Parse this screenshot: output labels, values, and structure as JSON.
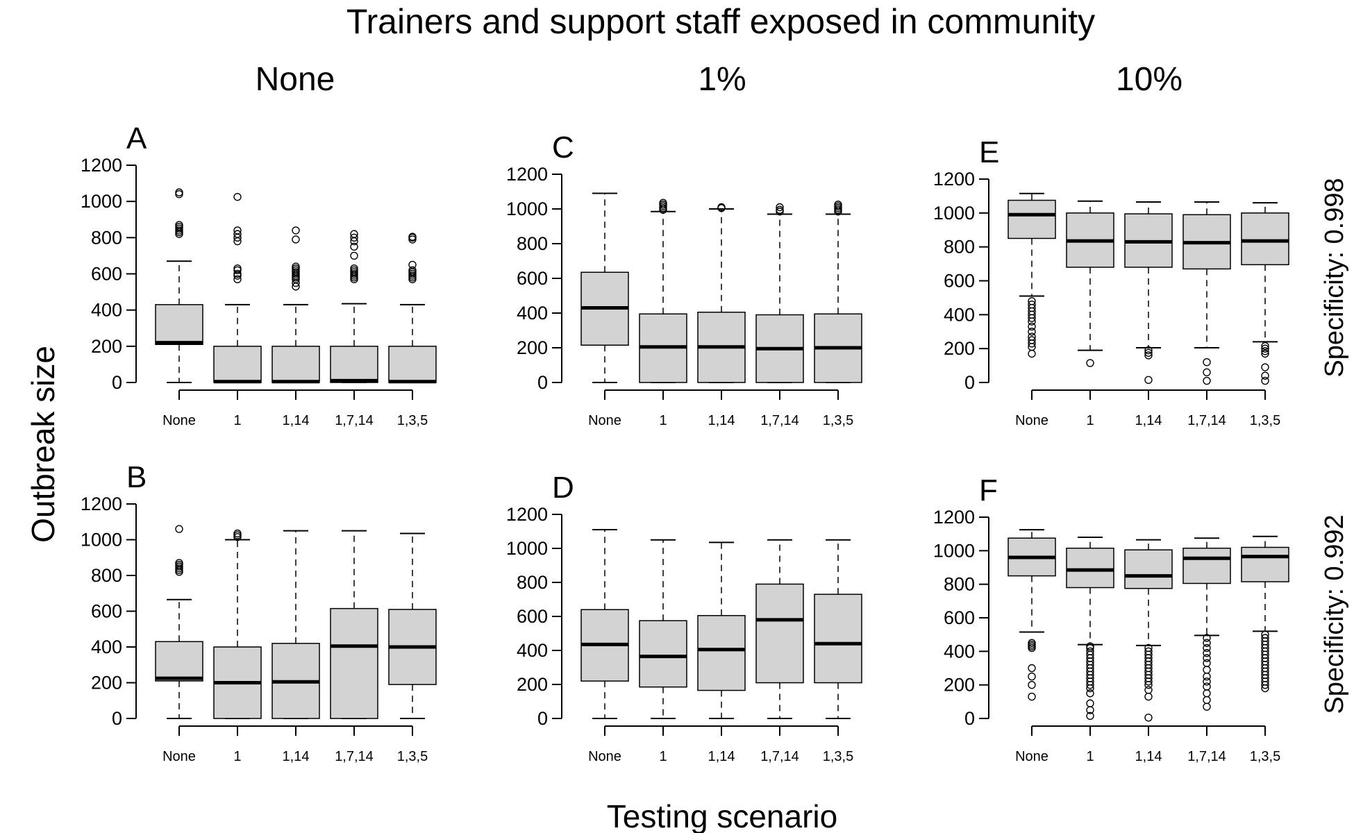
{
  "figure": {
    "title": "Trainers and support staff exposed in community",
    "column_headers": [
      "None",
      "1%",
      "10%"
    ],
    "row_labels": [
      "Specificity: 0.998",
      "Specificity: 0.992"
    ],
    "ylabel": "Outbreak size",
    "xlabel": "Testing scenario",
    "box_fill": "#d3d3d3",
    "line_color": "#000000"
  },
  "chart_data": [
    {
      "panel": "A",
      "type": "box",
      "categories": [
        "None",
        "1",
        "1,14",
        "1,7,14",
        "1,3,5"
      ],
      "yticks": [
        0,
        200,
        400,
        600,
        800,
        1000,
        1200
      ],
      "ylim": [
        0,
        1200
      ],
      "boxes": [
        {
          "whislo": 0,
          "q1": 210,
          "med": 220,
          "q3": 430,
          "whishi": 670,
          "outliers": [
            820,
            830,
            840,
            850,
            860,
            870,
            1040,
            1050
          ]
        },
        {
          "whislo": 0,
          "q1": 0,
          "med": 5,
          "q3": 200,
          "whishi": 430,
          "outliers": [
            570,
            590,
            600,
            620,
            630,
            780,
            800,
            820,
            840,
            1025
          ]
        },
        {
          "whislo": 0,
          "q1": 0,
          "med": 5,
          "q3": 200,
          "whishi": 430,
          "outliers": [
            530,
            550,
            570,
            580,
            590,
            600,
            610,
            620,
            630,
            640,
            790,
            840
          ]
        },
        {
          "whislo": 0,
          "q1": 0,
          "med": 10,
          "q3": 200,
          "whishi": 435,
          "outliers": [
            570,
            580,
            590,
            600,
            610,
            620,
            630,
            700,
            750,
            780,
            800,
            820
          ]
        },
        {
          "whislo": 0,
          "q1": 0,
          "med": 5,
          "q3": 200,
          "whishi": 430,
          "outliers": [
            570,
            580,
            590,
            600,
            610,
            620,
            650,
            790,
            800,
            805
          ]
        }
      ]
    },
    {
      "panel": "B",
      "type": "box",
      "categories": [
        "None",
        "1",
        "1,14",
        "1,7,14",
        "1,3,5"
      ],
      "yticks": [
        0,
        200,
        400,
        600,
        800,
        1000,
        1200
      ],
      "ylim": [
        0,
        1200
      ],
      "boxes": [
        {
          "whislo": 0,
          "q1": 210,
          "med": 225,
          "q3": 430,
          "whishi": 665,
          "outliers": [
            820,
            830,
            840,
            850,
            860,
            870,
            1060
          ]
        },
        {
          "whislo": 0,
          "q1": 0,
          "med": 200,
          "q3": 400,
          "whishi": 1000,
          "outliers": [
            1015,
            1025,
            1035
          ]
        },
        {
          "whislo": 0,
          "q1": 0,
          "med": 205,
          "q3": 420,
          "whishi": 1050,
          "outliers": []
        },
        {
          "whislo": 0,
          "q1": 0,
          "med": 405,
          "q3": 615,
          "whishi": 1050,
          "outliers": []
        },
        {
          "whislo": 0,
          "q1": 190,
          "med": 400,
          "q3": 610,
          "whishi": 1035,
          "outliers": []
        }
      ]
    },
    {
      "panel": "C",
      "type": "box",
      "categories": [
        "None",
        "1",
        "1,14",
        "1,7,14",
        "1,3,5"
      ],
      "yticks": [
        0,
        200,
        400,
        600,
        800,
        1000,
        1200
      ],
      "ylim": [
        0,
        1200
      ],
      "boxes": [
        {
          "whislo": 0,
          "q1": 215,
          "med": 430,
          "q3": 635,
          "whishi": 1090,
          "outliers": []
        },
        {
          "whislo": 0,
          "q1": 0,
          "med": 205,
          "q3": 395,
          "whishi": 985,
          "outliers": [
            995,
            1005,
            1015,
            1025,
            1035
          ]
        },
        {
          "whislo": 0,
          "q1": 0,
          "med": 205,
          "q3": 405,
          "whishi": 1000,
          "outliers": [
            1005,
            1010
          ]
        },
        {
          "whislo": 0,
          "q1": 0,
          "med": 195,
          "q3": 390,
          "whishi": 970,
          "outliers": [
            985,
            995,
            1010
          ]
        },
        {
          "whislo": 0,
          "q1": 0,
          "med": 200,
          "q3": 395,
          "whishi": 970,
          "outliers": [
            985,
            995,
            1005,
            1015,
            1025
          ]
        }
      ]
    },
    {
      "panel": "D",
      "type": "box",
      "categories": [
        "None",
        "1",
        "1,14",
        "1,7,14",
        "1,3,5"
      ],
      "yticks": [
        0,
        200,
        400,
        600,
        800,
        1000,
        1200
      ],
      "ylim": [
        0,
        1200
      ],
      "boxes": [
        {
          "whislo": 0,
          "q1": 220,
          "med": 435,
          "q3": 640,
          "whishi": 1110,
          "outliers": []
        },
        {
          "whislo": 0,
          "q1": 185,
          "med": 365,
          "q3": 575,
          "whishi": 1050,
          "outliers": []
        },
        {
          "whislo": 0,
          "q1": 165,
          "med": 405,
          "q3": 605,
          "whishi": 1035,
          "outliers": []
        },
        {
          "whislo": 0,
          "q1": 210,
          "med": 580,
          "q3": 790,
          "whishi": 1050,
          "outliers": []
        },
        {
          "whislo": 0,
          "q1": 210,
          "med": 440,
          "q3": 730,
          "whishi": 1050,
          "outliers": []
        }
      ]
    },
    {
      "panel": "E",
      "type": "box",
      "categories": [
        "None",
        "1",
        "1,14",
        "1,7,14",
        "1,3,5"
      ],
      "yticks": [
        0,
        200,
        400,
        600,
        800,
        1000,
        1200
      ],
      "ylim": [
        0,
        1200
      ],
      "boxes": [
        {
          "whislo": 510,
          "q1": 850,
          "med": 990,
          "q3": 1075,
          "whishi": 1115,
          "outliers": [
            170,
            210,
            230,
            250,
            270,
            300,
            330,
            360,
            380,
            400,
            420,
            440,
            460,
            480
          ]
        },
        {
          "whislo": 190,
          "q1": 680,
          "med": 835,
          "q3": 1000,
          "whishi": 1070,
          "outliers": [
            115
          ]
        },
        {
          "whislo": 205,
          "q1": 680,
          "med": 830,
          "q3": 995,
          "whishi": 1065,
          "outliers": [
            15,
            160,
            175,
            190
          ]
        },
        {
          "whislo": 205,
          "q1": 670,
          "med": 825,
          "q3": 990,
          "whishi": 1065,
          "outliers": [
            10,
            60,
            120
          ]
        },
        {
          "whislo": 240,
          "q1": 695,
          "med": 835,
          "q3": 1000,
          "whishi": 1060,
          "outliers": [
            10,
            40,
            90,
            170,
            185,
            200,
            215
          ]
        }
      ]
    },
    {
      "panel": "F",
      "type": "box",
      "categories": [
        "None",
        "1",
        "1,14",
        "1,7,14",
        "1,3,5"
      ],
      "yticks": [
        0,
        200,
        400,
        600,
        800,
        1000,
        1200
      ],
      "ylim": [
        0,
        1200
      ],
      "boxes": [
        {
          "whislo": 515,
          "q1": 850,
          "med": 960,
          "q3": 1075,
          "whishi": 1125,
          "outliers": [
            130,
            200,
            250,
            300,
            420,
            430,
            440,
            450
          ]
        },
        {
          "whislo": 440,
          "q1": 780,
          "med": 885,
          "q3": 1015,
          "whishi": 1080,
          "outliers": [
            15,
            50,
            90,
            150,
            180,
            200,
            220,
            240,
            260,
            280,
            300,
            320,
            340,
            360,
            380,
            400,
            420,
            430
          ]
        },
        {
          "whislo": 435,
          "q1": 775,
          "med": 850,
          "q3": 1005,
          "whishi": 1065,
          "outliers": [
            5,
            130,
            170,
            200,
            220,
            240,
            260,
            280,
            300,
            320,
            340,
            360,
            380,
            400,
            420
          ]
        },
        {
          "whislo": 495,
          "q1": 805,
          "med": 955,
          "q3": 1015,
          "whishi": 1075,
          "outliers": [
            70,
            110,
            150,
            190,
            220,
            250,
            290,
            330,
            360,
            390,
            420,
            450,
            480
          ]
        },
        {
          "whislo": 520,
          "q1": 815,
          "med": 965,
          "q3": 1020,
          "whishi": 1085,
          "outliers": [
            180,
            200,
            220,
            240,
            260,
            280,
            300,
            320,
            340,
            360,
            380,
            400,
            420,
            440,
            460,
            480,
            500
          ]
        }
      ]
    }
  ]
}
